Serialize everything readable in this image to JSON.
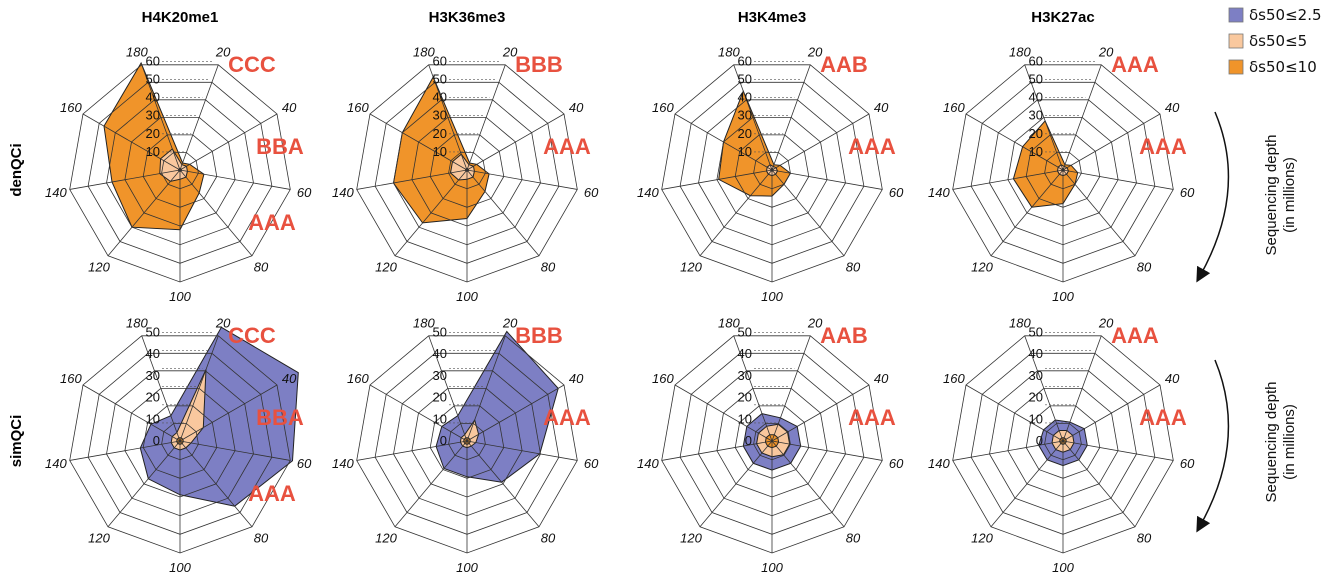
{
  "colors": {
    "small": "#7d7fc4",
    "medium": "#f9c89e",
    "large": "#f0942a",
    "grid": "#333333",
    "annotation": "#e8513f"
  },
  "legend": [
    {
      "label": "δs50≤2.5",
      "color": "#7d7fc4"
    },
    {
      "label": "δs50≤5",
      "color": "#f9c89e"
    },
    {
      "label": "δs50≤10",
      "color": "#f0942a"
    }
  ],
  "side_note": {
    "line1": "Sequencing depth",
    "line2": "(in millions)"
  },
  "chart_data": {
    "type": "radar",
    "columns": [
      "H4K20me1",
      "H3K36me3",
      "H3K4me3",
      "H3K27ac"
    ],
    "rows": [
      "denQCi",
      "simQCi"
    ],
    "axis_labels": [
      "20",
      "40",
      "60",
      "80",
      "100",
      "120",
      "140",
      "160",
      "180"
    ],
    "panels": [
      {
        "column": "H4K20me1",
        "row": "denQCi",
        "rmax": 60,
        "radial_ticks": [
          "10",
          "20",
          "30",
          "40",
          "50",
          "60"
        ],
        "annotations": [
          "CCC",
          "BBA",
          "AAA"
        ],
        "series": [
          {
            "name": "δs50≤10",
            "values": [
              4,
              6,
              13,
              16,
              32,
              40,
              37,
              47,
              61
            ]
          },
          {
            "name": "δs50≤5",
            "values": [
              3,
              4,
              4,
              5,
              5,
              8,
              11,
              12,
              12
            ]
          },
          {
            "name": "δs50≤2.5",
            "values": [
              0.8,
              0.8,
              0.8,
              0.8,
              0.8,
              0.8,
              0.8,
              0.8,
              0.8
            ]
          }
        ]
      },
      {
        "column": "H3K36me3",
        "row": "denQCi",
        "rmax": 60,
        "radial_ticks": [
          "10",
          "20",
          "30",
          "40",
          "50",
          "60"
        ],
        "annotations": [
          "BBB",
          "AAA"
        ],
        "series": [
          {
            "name": "δs50≤10",
            "values": [
              4,
              6,
              12,
              15,
              26,
              37,
              40,
              40,
              53
            ]
          },
          {
            "name": "δs50≤5",
            "values": [
              3,
              4,
              4,
              5,
              5,
              7,
              9,
              9,
              9
            ]
          },
          {
            "name": "δs50≤2.5",
            "values": [
              0.8,
              0.8,
              0.8,
              0.8,
              0.8,
              0.8,
              0.8,
              0.8,
              0.8
            ]
          }
        ]
      },
      {
        "column": "H3K4me3",
        "row": "denQCi",
        "rmax": 60,
        "radial_ticks": [
          "10",
          "20",
          "30",
          "40",
          "50",
          "60"
        ],
        "annotations": [
          "AAB",
          "AAA"
        ],
        "series": [
          {
            "name": "δs50≤10",
            "values": [
              3,
              5,
              10,
              10,
              14,
              18,
              29,
              30,
              45
            ]
          },
          {
            "name": "δs50≤5",
            "values": [
              2,
              2.5,
              3,
              3,
              3,
              3,
              3,
              3,
              3
            ]
          },
          {
            "name": "δs50≤2.5",
            "values": [
              0.7,
              0.7,
              0.7,
              0.7,
              0.7,
              0.7,
              0.7,
              0.7,
              0.7
            ]
          }
        ]
      },
      {
        "column": "H3K27ac",
        "row": "denQCi",
        "rmax": 60,
        "radial_ticks": [
          "10",
          "20",
          "30",
          "40",
          "50",
          "60"
        ],
        "annotations": [
          "AAA",
          "AAA"
        ],
        "series": [
          {
            "name": "δs50≤10",
            "values": [
              3,
              5,
              8,
              10,
              18,
              26,
              27,
              25,
              28
            ]
          },
          {
            "name": "δs50≤5",
            "values": [
              2,
              2.5,
              3,
              3,
              3,
              3,
              3,
              3,
              3
            ]
          },
          {
            "name": "δs50≤2.5",
            "values": [
              0.7,
              0.7,
              0.7,
              0.7,
              0.7,
              0.7,
              0.7,
              0.7,
              0.7
            ]
          }
        ]
      },
      {
        "column": "H4K20me1",
        "row": "simQCi",
        "rmax": 50,
        "radial_ticks": [
          "0",
          "10",
          "20",
          "30",
          "40",
          "50"
        ],
        "annotations": [
          "CCC",
          "BBA",
          "AAA"
        ],
        "series": [
          {
            "name": "δs50≤2.5",
            "values": [
              54,
              61,
              51,
              38,
              24,
              22,
              18,
              15,
              12
            ]
          },
          {
            "name": "δs50≤5",
            "values": [
              34,
              12,
              5,
              4,
              4,
              4,
              4,
              4,
              4
            ]
          },
          {
            "name": "δs50≤10",
            "values": [
              1.5,
              1.5,
              1.5,
              1.5,
              1.5,
              1.5,
              1.5,
              1.5,
              1.5
            ]
          }
        ]
      },
      {
        "column": "H3K36me3",
        "row": "simQCi",
        "rmax": 50,
        "radial_ticks": [
          "0",
          "10",
          "20",
          "30",
          "40",
          "50"
        ],
        "annotations": [
          "BBB",
          "AAA"
        ],
        "series": [
          {
            "name": "δs50≤2.5",
            "values": [
              52,
              47,
              33,
              24,
              16,
              16,
              14,
              13,
              12
            ]
          },
          {
            "name": "δs50≤5",
            "values": [
              10,
              6,
              4,
              3,
              3,
              3,
              3,
              3,
              3
            ]
          },
          {
            "name": "δs50≤10",
            "values": [
              1.5,
              1.5,
              1.5,
              1.5,
              1.5,
              1.5,
              1.5,
              1.5,
              1.5
            ]
          }
        ]
      },
      {
        "column": "H3K4me3",
        "row": "simQCi",
        "rmax": 50,
        "radial_ticks": [
          "0",
          "10",
          "20",
          "30",
          "40",
          "50"
        ],
        "annotations": [
          "AAB",
          "AAA"
        ],
        "series": [
          {
            "name": "δs50≤2.5",
            "values": [
              11,
              13,
              13,
              13,
              13,
              13,
              13,
              13,
              13
            ]
          },
          {
            "name": "δs50≤5",
            "values": [
              8,
              8,
              8,
              8,
              7,
              7,
              7,
              7,
              7
            ]
          },
          {
            "name": "δs50≤10",
            "values": [
              3,
              3,
              3,
              3,
              3,
              3,
              3,
              3,
              3
            ]
          }
        ]
      },
      {
        "column": "H3K27ac",
        "row": "simQCi",
        "rmax": 50,
        "radial_ticks": [
          "0",
          "10",
          "20",
          "30",
          "40",
          "50"
        ],
        "annotations": [
          "AAA",
          "AAA"
        ],
        "series": [
          {
            "name": "δs50≤2.5",
            "values": [
              9,
              11,
              11,
              11,
              11,
              11,
              11,
              10,
              10
            ]
          },
          {
            "name": "δs50≤5",
            "values": [
              5,
              5,
              5,
              5,
              5,
              5,
              5,
              5,
              5
            ]
          },
          {
            "name": "δs50≤10",
            "values": [
              1.5,
              1.5,
              1.5,
              1.5,
              1.5,
              1.5,
              1.5,
              1.5,
              1.5
            ]
          }
        ]
      }
    ]
  }
}
